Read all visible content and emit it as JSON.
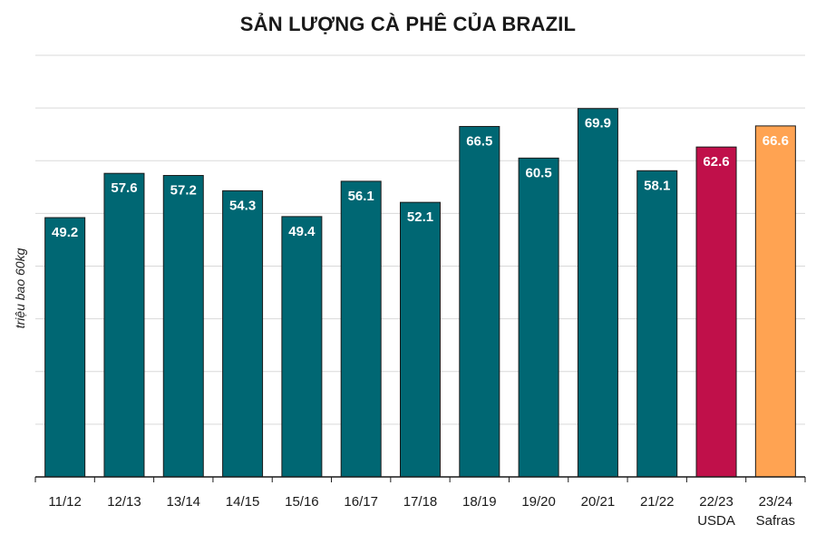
{
  "chart_data": {
    "type": "bar",
    "title": "SẢN LƯỢNG CÀ PHÊ CỦA BRAZIL",
    "xlabel": "",
    "ylabel": "triệu bao 60kg",
    "ylim": [
      0,
      80
    ],
    "grid": true,
    "categories": [
      [
        "11/12"
      ],
      [
        "12/13"
      ],
      [
        "13/14"
      ],
      [
        "14/15"
      ],
      [
        "15/16"
      ],
      [
        "16/17"
      ],
      [
        "17/18"
      ],
      [
        "18/19"
      ],
      [
        "19/20"
      ],
      [
        "20/21"
      ],
      [
        "21/22"
      ],
      [
        "22/23",
        "USDA"
      ],
      [
        "23/24",
        "Safras"
      ]
    ],
    "values": [
      49.2,
      57.6,
      57.2,
      54.3,
      49.4,
      56.1,
      52.1,
      66.5,
      60.5,
      69.9,
      58.1,
      62.6,
      66.6
    ],
    "data_labels": [
      "49.2",
      "57.6",
      "57.2",
      "54.3",
      "49.4",
      "56.1",
      "52.1",
      "66.5",
      "60.5",
      "69.9",
      "58.1",
      "62.6",
      "66.6"
    ],
    "colors": [
      "#006773",
      "#006773",
      "#006773",
      "#006773",
      "#006773",
      "#006773",
      "#006773",
      "#006773",
      "#006773",
      "#006773",
      "#006773",
      "#c0104a",
      "#ffa352"
    ]
  }
}
